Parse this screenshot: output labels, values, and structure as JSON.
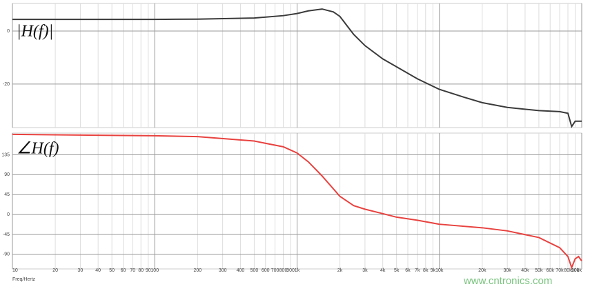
{
  "chart_data": [
    {
      "type": "line",
      "annotation": "|H(f)|",
      "xscale": "log",
      "grid": true,
      "xlim": [
        10,
        100000
      ],
      "ylim": [
        -36.4,
        10.4
      ],
      "yticks": [
        0,
        -20
      ],
      "xticks": [
        10,
        20,
        30,
        40,
        50,
        60,
        70,
        80,
        90,
        100,
        200,
        300,
        400,
        500,
        600,
        700,
        800,
        900,
        1000,
        2000,
        3000,
        4000,
        5000,
        6000,
        7000,
        8000,
        9000,
        10000,
        20000,
        30000,
        40000,
        50000,
        60000,
        70000,
        80000,
        90000,
        100000
      ],
      "x": [
        10,
        20,
        50,
        100,
        200,
        500,
        800,
        1000,
        1200,
        1500,
        1800,
        2000,
        2500,
        3000,
        4000,
        5000,
        7000,
        10000,
        15000,
        20000,
        30000,
        50000,
        70000,
        80000,
        85000,
        90000,
        100000
      ],
      "series": [
        {
          "color": "#3a3a3a",
          "values": [
            4.4,
            4.4,
            4.4,
            4.4,
            4.5,
            4.9,
            5.8,
            6.6,
            7.6,
            8.3,
            7.2,
            5.5,
            -1.3,
            -5.5,
            -10.5,
            -13.5,
            -18,
            -22,
            -25,
            -27,
            -28.8,
            -30,
            -30.4,
            -31,
            -36,
            -34,
            -34
          ]
        }
      ]
    },
    {
      "type": "line",
      "annotation": "∠H(f)",
      "xscale": "log",
      "grid": true,
      "xlabel": "Freq/Hertz",
      "xlim": [
        10,
        100000
      ],
      "ylim": [
        -123,
        184
      ],
      "yticks": [
        135,
        90,
        45,
        0,
        -45,
        -90
      ],
      "xticks": [
        10,
        20,
        30,
        40,
        50,
        60,
        70,
        80,
        90,
        100,
        200,
        300,
        400,
        500,
        600,
        700,
        800,
        900,
        {
          "value": 1000,
          "label": "1k"
        },
        {
          "value": 2000,
          "label": "2k"
        },
        {
          "value": 3000,
          "label": "3k"
        },
        {
          "value": 4000,
          "label": "4k"
        },
        {
          "value": 5000,
          "label": "5k"
        },
        {
          "value": 6000,
          "label": "6k"
        },
        {
          "value": 7000,
          "label": "7k"
        },
        {
          "value": 8000,
          "label": "8k"
        },
        {
          "value": 9000,
          "label": "9k"
        },
        {
          "value": 10000,
          "label": "10k"
        },
        {
          "value": 20000,
          "label": "20k"
        },
        {
          "value": 30000,
          "label": "30k"
        },
        {
          "value": 40000,
          "label": "40k"
        },
        {
          "value": 50000,
          "label": "50k"
        },
        {
          "value": 60000,
          "label": "60k"
        },
        {
          "value": 70000,
          "label": "70k"
        },
        {
          "value": 80000,
          "label": "80k"
        },
        {
          "value": 90000,
          "label": "90k"
        },
        {
          "value": 100000,
          "label": "100k"
        }
      ],
      "x": [
        10,
        100,
        200,
        500,
        800,
        1000,
        1200,
        1500,
        2000,
        2500,
        3000,
        4000,
        5000,
        7000,
        10000,
        20000,
        30000,
        50000,
        70000,
        80000,
        85000,
        90000,
        95000,
        100000
      ],
      "series": [
        {
          "color": "#e8423f",
          "values": [
            181,
            178,
            176,
            166,
            153,
            139,
            119,
            87,
            41,
            20,
            12,
            2,
            -6,
            -13,
            -22,
            -30,
            -37,
            -52,
            -75,
            -95,
            -120,
            -100,
            -95,
            -105
          ]
        }
      ]
    }
  ],
  "watermark": "www.cntronics.com"
}
